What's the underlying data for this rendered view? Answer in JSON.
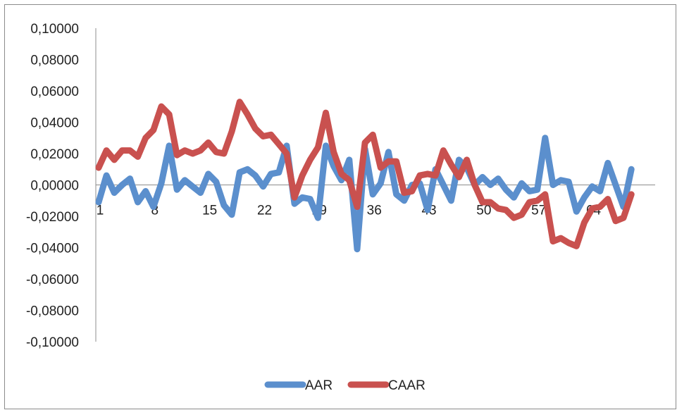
{
  "chart_data": {
    "type": "line",
    "title": "",
    "xlabel": "",
    "ylabel": "",
    "ylim": [
      -0.1,
      0.1
    ],
    "y_ticks": [
      "0,10000",
      "0,08000",
      "0,06000",
      "0,04000",
      "0,02000",
      "0,00000",
      "-0,02000",
      "-0,04000",
      "-0,06000",
      "-0,08000",
      "-0,10000"
    ],
    "x_tick_labels": [
      "1",
      "8",
      "15",
      "22",
      "29",
      "36",
      "43",
      "50",
      "57",
      "64"
    ],
    "x_tick_positions": [
      1,
      8,
      15,
      22,
      29,
      36,
      43,
      50,
      57,
      64
    ],
    "x": [
      1,
      2,
      3,
      4,
      5,
      6,
      7,
      8,
      9,
      10,
      11,
      12,
      13,
      14,
      15,
      16,
      17,
      18,
      19,
      20,
      21,
      22,
      23,
      24,
      25,
      26,
      27,
      28,
      29,
      30,
      31,
      32,
      33,
      34,
      35,
      36,
      37,
      38,
      39,
      40,
      41,
      42,
      43,
      44,
      45,
      46,
      47,
      48,
      49,
      50,
      51,
      52,
      53,
      54,
      55,
      56,
      57,
      58,
      59,
      60,
      61,
      62,
      63,
      64,
      65,
      66,
      67,
      68,
      69
    ],
    "grid": false,
    "legend_position": "bottom",
    "series": [
      {
        "name": "AAR",
        "color": "#5b8fcd",
        "values": [
          -0.011,
          0.006,
          -0.005,
          0.0,
          0.004,
          -0.011,
          -0.004,
          -0.014,
          0.001,
          0.025,
          -0.003,
          0.003,
          -0.001,
          -0.005,
          0.007,
          0.002,
          -0.013,
          -0.019,
          0.008,
          0.01,
          0.006,
          -0.001,
          0.007,
          0.008,
          0.025,
          -0.012,
          -0.008,
          -0.009,
          -0.021,
          0.025,
          0.012,
          0.003,
          0.016,
          -0.041,
          0.023,
          -0.006,
          0.001,
          0.021,
          -0.006,
          -0.01,
          0.0,
          0.001,
          -0.016,
          0.01,
          0.0,
          -0.01,
          0.016,
          0.011,
          0.0,
          0.005,
          0.0,
          0.004,
          -0.003,
          -0.008,
          0.001,
          -0.004,
          -0.003,
          0.03,
          0.0,
          0.003,
          0.002,
          -0.017,
          -0.008,
          -0.001,
          -0.004,
          0.014,
          0.0,
          -0.014,
          0.01
        ]
      },
      {
        "name": "CAAR",
        "color": "#c9514f",
        "values": [
          0.011,
          0.022,
          0.016,
          0.022,
          0.022,
          0.018,
          0.03,
          0.035,
          0.05,
          0.045,
          0.019,
          0.022,
          0.02,
          0.022,
          0.027,
          0.021,
          0.02,
          0.034,
          0.053,
          0.045,
          0.036,
          0.031,
          0.032,
          0.026,
          0.02,
          -0.008,
          0.006,
          0.016,
          0.024,
          0.046,
          0.021,
          0.007,
          0.003,
          -0.014,
          0.027,
          0.032,
          0.011,
          0.015,
          0.015,
          -0.005,
          -0.004,
          0.006,
          0.007,
          0.006,
          0.022,
          0.013,
          0.005,
          0.016,
          0.0,
          -0.011,
          -0.011,
          -0.015,
          -0.016,
          -0.021,
          -0.019,
          -0.011,
          -0.01,
          -0.006,
          -0.036,
          -0.034,
          -0.037,
          -0.039,
          -0.024,
          -0.015,
          -0.014,
          -0.009,
          -0.023,
          -0.021,
          -0.006
        ]
      }
    ]
  }
}
